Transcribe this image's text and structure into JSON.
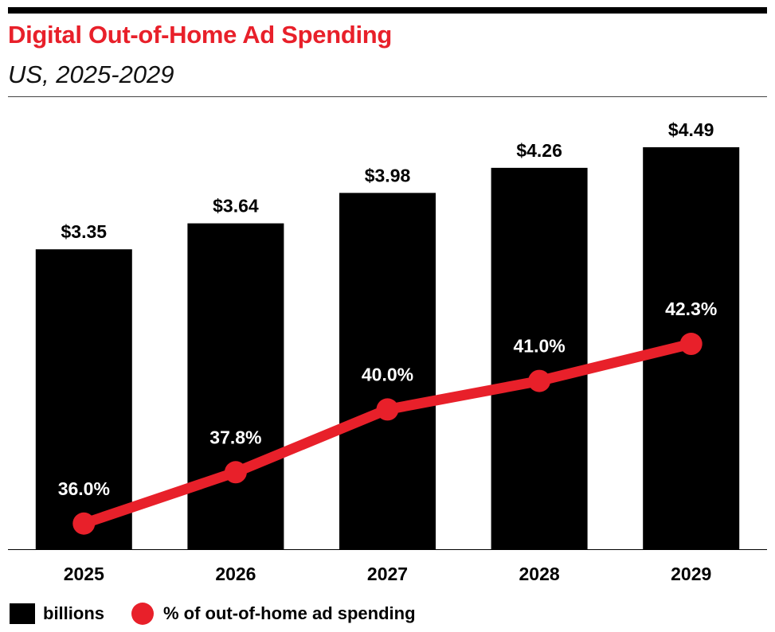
{
  "title": "Digital Out-of-Home Ad Spending",
  "subtitle": "US, 2025-2029",
  "colors": {
    "accent": "#e8202a",
    "bar": "#000000",
    "axis": "#000000"
  },
  "legend": {
    "bar_label": "billions",
    "line_label": "% of out-of-home ad spending"
  },
  "chart_data": {
    "type": "bar",
    "title": "Digital Out-of-Home Ad Spending",
    "subtitle": "US, 2025-2029",
    "categories": [
      "2025",
      "2026",
      "2027",
      "2028",
      "2029"
    ],
    "series": [
      {
        "name": "billions",
        "type": "bar",
        "values": [
          3.35,
          3.64,
          3.98,
          4.26,
          4.49
        ],
        "labels": [
          "$3.35",
          "$3.64",
          "$3.98",
          "$4.26",
          "$4.49"
        ]
      },
      {
        "name": "% of out-of-home ad spending",
        "type": "line",
        "values": [
          36.0,
          37.8,
          40.0,
          41.0,
          42.3
        ],
        "labels": [
          "36.0%",
          "37.8%",
          "40.0%",
          "41.0%",
          "42.3%"
        ]
      }
    ],
    "bar_ylim": [
      0,
      4.89
    ],
    "line_ylim": [
      35.1,
      50.45
    ],
    "xlabel": "",
    "ylabel": "",
    "grid": false,
    "legend_position": "bottom-left"
  }
}
